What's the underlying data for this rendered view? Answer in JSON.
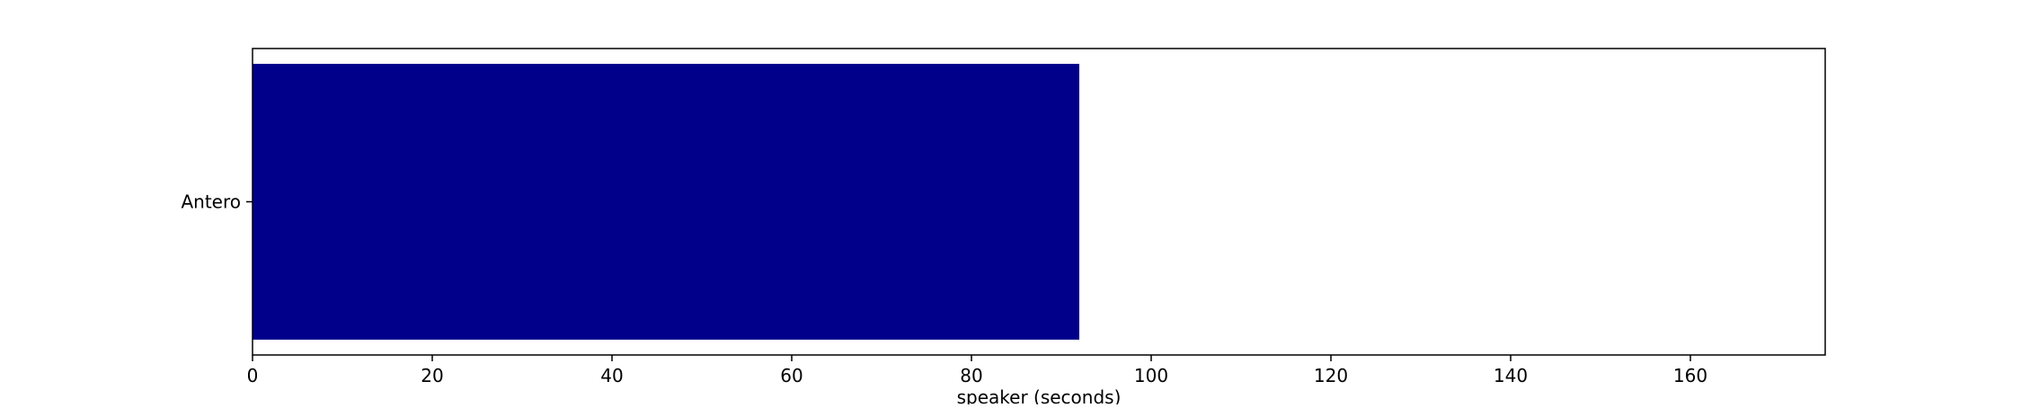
{
  "chart_data": {
    "type": "bar",
    "orientation": "horizontal",
    "categories": [
      "Antero"
    ],
    "values": [
      92
    ],
    "title": "",
    "xlabel": "speaker (seconds)",
    "ylabel": "",
    "xlim": [
      0,
      175
    ],
    "xticks": [
      0,
      20,
      40,
      60,
      80,
      100,
      120,
      140,
      160
    ],
    "grid": false,
    "bar_color": "#00008b"
  }
}
